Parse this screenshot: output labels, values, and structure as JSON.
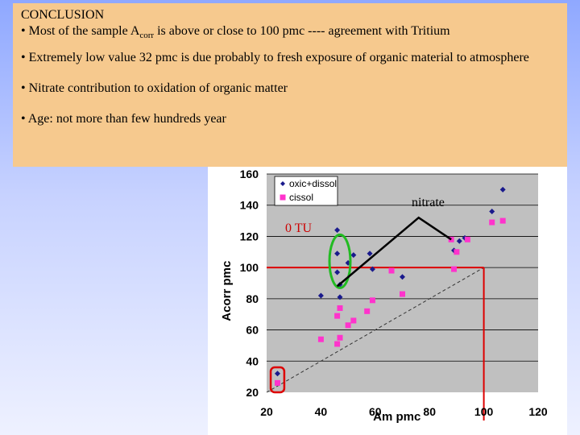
{
  "conclusion": {
    "heading": "CONCLUSION",
    "b1_pre": "• Most of the sample A",
    "b1_sub": "corr",
    "b1_post": " is above or close to 100 pmc ---- agreement with Tritium",
    "b2": "• Extremely low value 32 pmc is due probably to fresh exposure of organic material to atmosphere",
    "b3": "• Nitrate contribution to oxidation of organic matter",
    "b4": "• Age: not more than few hundreds year"
  },
  "annotations": {
    "nitrate": "nitrate",
    "zero_tu": "0 TU"
  },
  "colors": {
    "plot_bg": "#c0c0c0",
    "oxic": "#1a1a8c",
    "cissol": "#ff33cc",
    "red_lines": "#dd0000",
    "green_ellipse": "#22bb22"
  },
  "chart_data": {
    "type": "scatter",
    "xlabel": "Am pmc",
    "ylabel": "Acorr pmc",
    "xlim": [
      20,
      120
    ],
    "ylim": [
      20,
      160
    ],
    "xticks": [
      "20",
      "40",
      "60",
      "80",
      "100",
      "120"
    ],
    "yticks": [
      "20",
      "40",
      "60",
      "80",
      "100",
      "120",
      "140",
      "160"
    ],
    "grid": true,
    "legend_position": "top-left",
    "series": [
      {
        "name": "oxic+dissol",
        "marker": "diamond",
        "color": "#1a1a8c",
        "points": [
          [
            24,
            32
          ],
          [
            40,
            82
          ],
          [
            46,
            124
          ],
          [
            46,
            109
          ],
          [
            46,
            97
          ],
          [
            47,
            81
          ],
          [
            47,
            89
          ],
          [
            50,
            103
          ],
          [
            52,
            108
          ],
          [
            58,
            109
          ],
          [
            59,
            99
          ],
          [
            70,
            94
          ],
          [
            89,
            111
          ],
          [
            91,
            117
          ],
          [
            93,
            119
          ],
          [
            103,
            136
          ],
          [
            107,
            150
          ]
        ]
      },
      {
        "name": "cissol",
        "marker": "square",
        "color": "#ff33cc",
        "points": [
          [
            24,
            26
          ],
          [
            40,
            54
          ],
          [
            46,
            51
          ],
          [
            46,
            69
          ],
          [
            47,
            74
          ],
          [
            47,
            55
          ],
          [
            50,
            63
          ],
          [
            52,
            66
          ],
          [
            57,
            72
          ],
          [
            59,
            79
          ],
          [
            66,
            98
          ],
          [
            70,
            83
          ],
          [
            88,
            118
          ],
          [
            89,
            99
          ],
          [
            90,
            110
          ],
          [
            94,
            118
          ],
          [
            103,
            129
          ],
          [
            107,
            130
          ]
        ]
      }
    ],
    "reference_lines": {
      "red_box_x": 100,
      "red_box_y": 100,
      "dashed_line": [
        [
          20,
          20
        ],
        [
          100,
          100
        ]
      ]
    }
  }
}
